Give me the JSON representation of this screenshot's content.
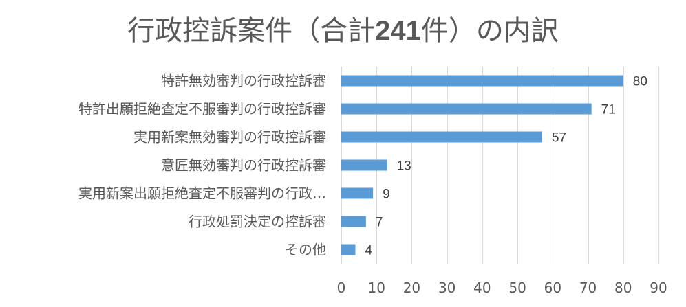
{
  "chart_data": {
    "type": "bar",
    "orientation": "horizontal",
    "title": "行政控訴案件（合計241件）の内訳",
    "title_parts": [
      "行政控訴案件（合計",
      "241",
      "件）の内訳"
    ],
    "categories": [
      "特許無効審判の行政控訴審",
      "特許出願拒絶査定不服審判の行政控訴審",
      "実用新案無効審判の行政控訴審",
      "意匠無効審判の行政控訴審",
      "実用新案出願拒絶査定不服審判の行政…",
      "行政処罰決定の控訴審",
      "その他"
    ],
    "values": [
      80,
      71,
      57,
      13,
      9,
      7,
      4
    ],
    "xlim": [
      0,
      90
    ],
    "xticks": [
      0,
      10,
      20,
      30,
      40,
      50,
      60,
      70,
      80,
      90
    ],
    "grid": true,
    "data_labels": true,
    "bar_color": "#5b9bd5",
    "grid_color": "#d9d9d9"
  }
}
